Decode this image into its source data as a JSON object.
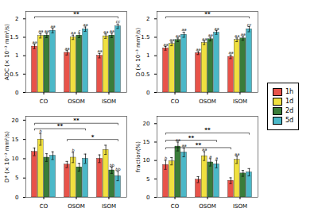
{
  "chart_data": [
    {
      "type": "bar",
      "ylabel": "ADC (× 10⁻³ mm²/s)",
      "categories": [
        "CO",
        "OSOM",
        "ISOM"
      ],
      "series": [
        {
          "name": "1h",
          "color": "#e8534a",
          "values": [
            1.25,
            1.08,
            1.0
          ],
          "errors": [
            0.06,
            0.06,
            0.06
          ],
          "annotations": [
            "aa",
            "aa",
            "aa"
          ]
        },
        {
          "name": "1d",
          "color": "#f0e040",
          "values": [
            1.54,
            1.5,
            1.53
          ],
          "errors": [
            0.06,
            0.06,
            0.06
          ],
          "annotations": [
            "aa",
            "aa",
            "aa"
          ]
        },
        {
          "name": "2d",
          "color": "#3a7d3a",
          "values": [
            1.55,
            1.55,
            1.55
          ],
          "errors": [
            0.06,
            0.06,
            0.06
          ],
          "annotations": [
            "aa",
            "c",
            "aa"
          ]
        },
        {
          "name": "5d",
          "color": "#4bb8c8",
          "values": [
            1.68,
            1.72,
            1.8
          ],
          "errors": [
            0.06,
            0.06,
            0.06
          ],
          "annotations": [
            "aa",
            "aa",
            "cc"
          ]
        }
      ],
      "ylim": [
        0,
        2.2
      ],
      "yticks": [
        0,
        0.5,
        1,
        1.5,
        2
      ],
      "legend": "right",
      "sig_brackets": [
        {
          "from": [
            "CO",
            "1h"
          ],
          "to": [
            "ISOM",
            "5d"
          ],
          "y": 2.06,
          "label": "**"
        }
      ]
    },
    {
      "type": "bar",
      "ylabel": "D (× 10⁻³ mm²/s)",
      "categories": [
        "CO",
        "OSOM",
        "ISOM"
      ],
      "series": [
        {
          "name": "1h",
          "color": "#e8534a",
          "values": [
            1.2,
            1.07,
            0.97
          ],
          "errors": [
            0.05,
            0.04,
            0.05
          ],
          "annotations": [
            "aa",
            "aa",
            "aa"
          ]
        },
        {
          "name": "1d",
          "color": "#f0e040",
          "values": [
            1.32,
            1.35,
            1.43
          ],
          "errors": [
            0.05,
            0.05,
            0.05
          ],
          "annotations": [
            "aa",
            "aa",
            "aa"
          ]
        },
        {
          "name": "2d",
          "color": "#3a7d3a",
          "values": [
            1.43,
            1.45,
            1.47
          ],
          "errors": [
            0.05,
            0.05,
            0.05
          ],
          "annotations": [
            "aa",
            "aa",
            "aa"
          ]
        },
        {
          "name": "5d",
          "color": "#4bb8c8",
          "values": [
            1.57,
            1.63,
            1.72
          ],
          "errors": [
            0.07,
            0.05,
            0.07
          ],
          "annotations": [
            "aa",
            "aa",
            "cc"
          ]
        }
      ],
      "ylim": [
        0,
        2.2
      ],
      "yticks": [
        0,
        0.5,
        1,
        1.5,
        2
      ],
      "legend": "right",
      "sig_brackets": [
        {
          "from": [
            "CO",
            "1h"
          ],
          "to": [
            "ISOM",
            "5d"
          ],
          "y": 2.06,
          "label": "**"
        }
      ]
    },
    {
      "type": "bar",
      "ylabel": "D* (× 10⁻³ mm²/s)",
      "categories": [
        "CO",
        "OSOM",
        "ISOM"
      ],
      "series": [
        {
          "name": "1h",
          "color": "#e8534a",
          "values": [
            11.8,
            8.5,
            10.0
          ],
          "errors": [
            1.0,
            0.8,
            1.0
          ],
          "annotations": [
            null,
            null,
            null
          ]
        },
        {
          "name": "1d",
          "color": "#f0e040",
          "values": [
            15.0,
            10.3,
            12.3
          ],
          "errors": [
            1.5,
            1.3,
            1.2
          ],
          "annotations": [
            "b",
            "b",
            null
          ]
        },
        {
          "name": "2d",
          "color": "#3a7d3a",
          "values": [
            10.3,
            7.8,
            7.0
          ],
          "errors": [
            1.0,
            1.0,
            0.8
          ],
          "annotations": [
            null,
            null,
            "bb"
          ]
        },
        {
          "name": "5d",
          "color": "#4bb8c8",
          "values": [
            10.8,
            10.0,
            5.5
          ],
          "errors": [
            1.0,
            1.2,
            1.2
          ],
          "annotations": [
            null,
            null,
            "bb"
          ]
        }
      ],
      "ylim": [
        0,
        21
      ],
      "yticks": [
        0,
        5,
        10,
        15,
        20
      ],
      "legend": "right",
      "sig_brackets": [
        {
          "from": [
            "CO",
            "1h"
          ],
          "to": [
            "OSOM",
            "5d"
          ],
          "y": 17.8,
          "label": "**"
        },
        {
          "from": [
            "CO",
            "1h"
          ],
          "to": [
            "ISOM",
            "5d"
          ],
          "y": 19.2,
          "label": "**"
        },
        {
          "from": [
            "OSOM",
            "1h"
          ],
          "to": [
            "ISOM",
            "5d"
          ],
          "y": 15.0,
          "label": "*"
        }
      ]
    },
    {
      "type": "bar",
      "ylabel": "fraction(%)",
      "categories": [
        "CO",
        "OSOM",
        "ISOM"
      ],
      "series": [
        {
          "name": "1h",
          "color": "#e8534a",
          "values": [
            8.8,
            4.8,
            4.5
          ],
          "errors": [
            1.2,
            0.8,
            0.8
          ],
          "annotations": [
            "b",
            null,
            null
          ]
        },
        {
          "name": "1d",
          "color": "#f0e040",
          "values": [
            9.8,
            11.2,
            10.2
          ],
          "errors": [
            1.0,
            1.2,
            1.0
          ],
          "annotations": [
            null,
            "aa",
            "aa"
          ]
        },
        {
          "name": "2d",
          "color": "#3a7d3a",
          "values": [
            13.8,
            9.5,
            6.5
          ],
          "errors": [
            1.2,
            1.0,
            0.8
          ],
          "annotations": [
            "aa",
            "a",
            null
          ]
        },
        {
          "name": "5d",
          "color": "#4bb8c8",
          "values": [
            12.2,
            9.0,
            6.8
          ],
          "errors": [
            1.2,
            1.0,
            1.0
          ],
          "annotations": [
            "aa",
            "a",
            null
          ]
        }
      ],
      "ylim": [
        0,
        22
      ],
      "yticks": [
        0,
        5,
        10,
        15,
        20
      ],
      "legend": "right",
      "sig_brackets": [
        {
          "from": [
            "CO",
            "1h"
          ],
          "to": [
            "ISOM",
            "5d"
          ],
          "y": 17.5,
          "label": "**"
        },
        {
          "from": [
            "CO",
            "1h"
          ],
          "to": [
            "OSOM",
            "5d"
          ],
          "y": 15.5,
          "label": "**"
        },
        {
          "from": [
            "CO",
            "1h"
          ],
          "to": [
            "ISOM",
            "1h"
          ],
          "y": 13.5,
          "label": "**"
        }
      ]
    }
  ]
}
